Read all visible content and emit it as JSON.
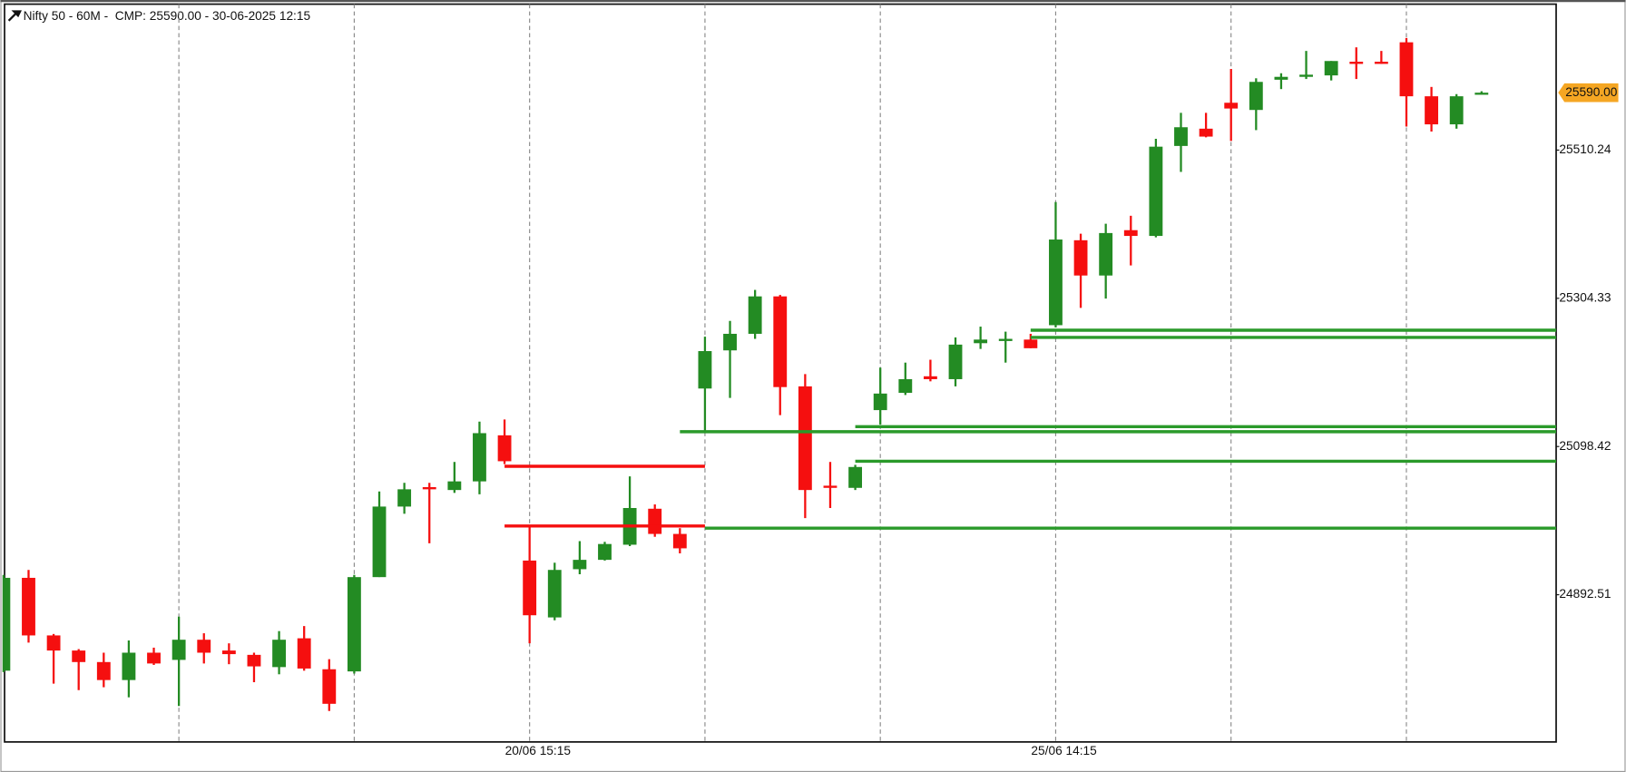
{
  "chart_data": {
    "type": "candlestick",
    "title": "Nifty 50 - 60M -  CMP: 25590.00 - 30-06-2025 12:15",
    "categories": [
      null,
      null,
      null,
      null,
      null,
      null,
      null,
      null,
      null,
      null,
      null,
      null,
      null,
      null,
      null,
      null,
      null,
      null,
      null,
      null,
      null,
      "20/06 15:15",
      null,
      null,
      null,
      null,
      null,
      null,
      null,
      null,
      null,
      null,
      null,
      null,
      null,
      null,
      null,
      null,
      null,
      null,
      null,
      null,
      "25/06 14:15",
      null,
      null,
      null,
      null,
      null,
      null,
      null,
      null,
      null,
      null,
      null,
      null,
      null,
      null,
      null,
      null,
      null
    ],
    "open": [
      24787,
      24916,
      24836,
      24815,
      24799,
      24774,
      24812,
      24802,
      24830,
      24815,
      24809,
      24792,
      24832,
      24789,
      24786,
      24917,
      25015,
      25042,
      25038,
      25050,
      25114,
      24940,
      24861,
      24928,
      24941,
      24962,
      25012,
      24977,
      25179,
      25232,
      25255,
      25307,
      25182,
      25044,
      25041,
      25149,
      25173,
      25196,
      25192,
      25242,
      25245,
      25247,
      25267,
      25385,
      25336,
      25399,
      25391,
      25516,
      25540,
      25576,
      25566,
      25608,
      25612,
      25614,
      25633,
      25633,
      25660,
      25585,
      25546,
      25589
    ],
    "high": [
      24920,
      24927,
      24838,
      24817,
      24812,
      24829,
      24819,
      24862,
      24839,
      24825,
      24812,
      24842,
      24849,
      24803,
      24920,
      25036,
      25048,
      25048,
      25077,
      25133,
      25136,
      24987,
      24937,
      24967,
      24966,
      25057,
      25018,
      24985,
      25251,
      25273,
      25316,
      25309,
      25199,
      25077,
      25073,
      25208,
      25215,
      25219,
      25250,
      25265,
      25258,
      25255,
      25438,
      25394,
      25408,
      25419,
      25526,
      25562,
      25562,
      25623,
      25610,
      25617,
      25648,
      25634,
      25653,
      25648,
      25666,
      25598,
      25588,
      25592
    ],
    "low": [
      24785,
      24826,
      24769,
      24760,
      24764,
      24750,
      24795,
      24738,
      24797,
      24796,
      24771,
      24782,
      24787,
      24731,
      24783,
      24917,
      25005,
      24964,
      25034,
      25032,
      25074,
      24825,
      24857,
      24921,
      24940,
      24960,
      24973,
      24950,
      25119,
      25166,
      25248,
      25142,
      24999,
      25013,
      25038,
      25129,
      25170,
      25189,
      25182,
      25234,
      25215,
      25235,
      25264,
      25291,
      25304,
      25350,
      25389,
      25480,
      25528,
      25523,
      25538,
      25595,
      25609,
      25607,
      25609,
      25630,
      25543,
      25536,
      25540,
      25588
    ],
    "close": [
      24916,
      24836,
      24815,
      24799,
      24774,
      24812,
      24797,
      24830,
      24812,
      24810,
      24793,
      24830,
      24790,
      24741,
      24917,
      25015,
      25039,
      25039,
      25050,
      25117,
      25078,
      24864,
      24927,
      24941,
      24963,
      25013,
      24977,
      24957,
      25231,
      25255,
      25307,
      25181,
      25038,
      25041,
      25070,
      25172,
      25192,
      25192,
      25240,
      25247,
      25248,
      25235,
      25386,
      25336,
      25395,
      25391,
      25515,
      25542,
      25529,
      25568,
      25605,
      25612,
      25615,
      25634,
      25630,
      25630,
      25585,
      25546,
      25585,
      25590
    ],
    "up_color": "#238b23",
    "down_color": "#f50f0f",
    "levels": [
      {
        "value": 25071,
        "color": "#f50f0f",
        "start": 20,
        "end": 28
      },
      {
        "value": 24988,
        "color": "#f50f0f",
        "start": 20,
        "end": 28
      },
      {
        "value": 24985,
        "color": "#2a9a2a",
        "start": 28
      },
      {
        "value": 25119,
        "color": "#2a9a2a",
        "start": 27
      },
      {
        "value": 25126,
        "color": "#2a9a2a",
        "start": 34
      },
      {
        "value": 25078,
        "color": "#2a9a2a",
        "start": 34
      },
      {
        "value": 25260,
        "color": "#2a9a2a",
        "start": 41
      },
      {
        "value": 25250,
        "color": "#2a9a2a",
        "start": 41
      }
    ],
    "last_price": {
      "value": 25590,
      "label": "25590.00"
    },
    "last_price_color": "#f5a623",
    "ylim": [
      24688,
      25713
    ],
    "yticks": [
      24892.51,
      25098.42,
      25304.33,
      25510.24
    ],
    "grid": true
  }
}
